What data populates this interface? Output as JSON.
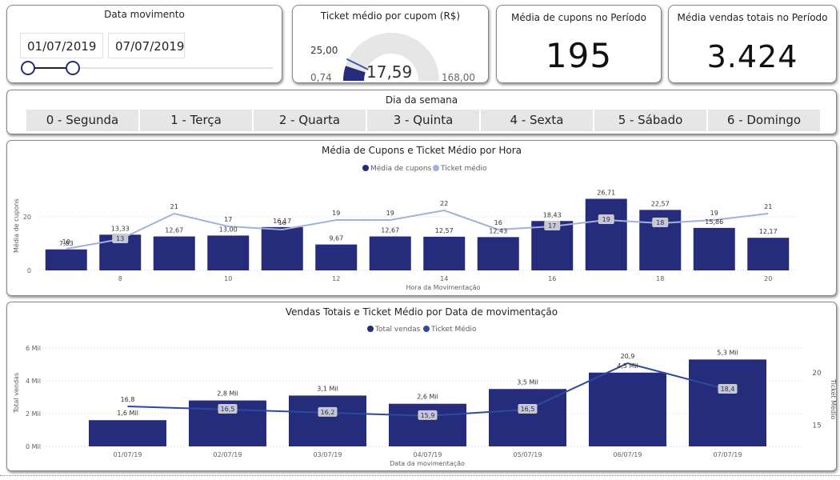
{
  "date_filter": {
    "title": "Data movimento",
    "start_date": "01/07/2019",
    "end_date": "07/07/2019"
  },
  "ticket_gauge": {
    "title": "Ticket médio por cupom (R$)",
    "value": "17,59",
    "value_num": 17.59,
    "min": "0,74",
    "min_num": 0.74,
    "max": "168,00",
    "max_num": 168.0,
    "target": "25,00",
    "target_num": 25.0
  },
  "kpi_cupons": {
    "title": "Média de cupons no Período",
    "value": "195"
  },
  "kpi_vendas": {
    "title": "Média vendas totais no Período",
    "value": "3.424"
  },
  "weekday_filter": {
    "title": "Dia da semana",
    "days": [
      "0 - Segunda",
      "1 - Terça",
      "2 - Quarta",
      "3 - Quinta",
      "4 - Sexta",
      "5 - Sábado",
      "6 - Domingo"
    ]
  },
  "colors": {
    "bar": "#252c7b",
    "ticket_line": "#a6b0d9",
    "sales_line": "#2e4a9e",
    "label_bg": "#c8c8cf"
  },
  "chart_data": [
    {
      "type": "bar",
      "title": "Média de Cupons e Ticket Médio por Hora",
      "xlabel": "Hora da Movimentação",
      "ylabel": "Média de cupons",
      "legend": [
        "Média de cupons",
        "Ticket médio"
      ],
      "categories": [
        7,
        8,
        9,
        10,
        11,
        12,
        13,
        14,
        15,
        16,
        17,
        18,
        19,
        20
      ],
      "x_ticks": [
        "8",
        "10",
        "12",
        "14",
        "16",
        "18",
        "20"
      ],
      "y_ticks": [
        "0",
        "20"
      ],
      "ylim": [
        0,
        30
      ],
      "series": [
        {
          "name": "Média de cupons",
          "kind": "bar",
          "values": [
            7.83,
            13.33,
            12.67,
            13.0,
            16.17,
            9.67,
            12.67,
            12.57,
            12.43,
            18.43,
            26.71,
            22.57,
            15.86,
            12.17
          ],
          "labels": [
            "7,83",
            "13,33",
            "12,67",
            "13,00",
            "16,17",
            "9,67",
            "12,67",
            "12,57",
            "12,43",
            "18,43",
            "26,71",
            "22,57",
            "15,86",
            "12,17"
          ]
        },
        {
          "name": "Ticket médio",
          "kind": "line",
          "values": [
            10,
            13,
            21,
            17,
            16,
            19,
            19,
            22,
            16,
            17,
            19,
            18,
            19,
            21
          ],
          "labels": [
            "10",
            "13",
            "21",
            "17",
            "16",
            "19",
            "19",
            "22",
            "16",
            "17",
            "19",
            "18",
            "19",
            "21"
          ]
        }
      ]
    },
    {
      "type": "bar",
      "title": "Vendas Totais e Ticket Médio por Data de movimentação",
      "xlabel": "Data da movimentação",
      "ylabel": "Total vendas",
      "y2label": "Ticket Médio",
      "legend": [
        "Total vendas",
        "Ticket Médio"
      ],
      "categories": [
        "01/07/19",
        "02/07/19",
        "03/07/19",
        "04/07/19",
        "05/07/19",
        "06/07/19",
        "07/07/19"
      ],
      "y_ticks": [
        "0 Mil",
        "2 Mil",
        "4 Mil",
        "6 Mil"
      ],
      "ylim": [
        0,
        6
      ],
      "y2_ticks": [
        "15",
        "20"
      ],
      "y2lim": [
        13,
        22.5
      ],
      "series": [
        {
          "name": "Total vendas",
          "kind": "bar",
          "values": [
            1.6,
            2.8,
            3.1,
            2.6,
            3.5,
            4.5,
            5.3
          ],
          "labels": [
            "1,6 Mil",
            "2,8 Mil",
            "3,1 Mil",
            "2,6 Mil",
            "3,5 Mil",
            "4,5 Mil",
            "5,3 Mil"
          ]
        },
        {
          "name": "Ticket Médio",
          "kind": "line",
          "values": [
            16.8,
            16.5,
            16.2,
            15.9,
            16.5,
            20.9,
            18.4
          ],
          "labels": [
            "16,8",
            "16,5",
            "16,2",
            "15,9",
            "16,5",
            "20,9",
            "18,4"
          ]
        }
      ]
    }
  ]
}
